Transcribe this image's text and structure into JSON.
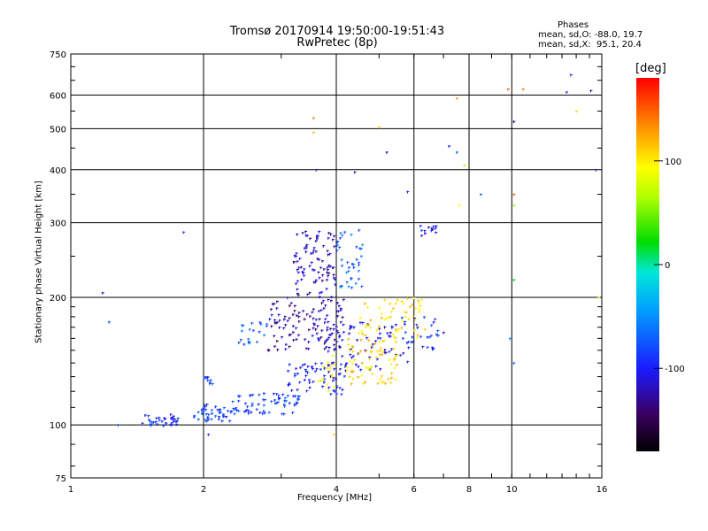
{
  "header": {
    "title": "Tromsø 20170914 19:50:00-19:51:43",
    "subtitle": "RwPretec (8p)"
  },
  "stats": {
    "heading": "Phases",
    "line_o": "mean, sd,O: -88.0, 19.7",
    "line_x": "mean, sd,X:  95.1, 20.4"
  },
  "colorbar": {
    "unit_label": "[deg]",
    "ticks": [
      {
        "value": 100,
        "label": "100"
      },
      {
        "value": 0,
        "label": "0"
      },
      {
        "value": -100,
        "label": "-100"
      }
    ],
    "range": [
      -180,
      180
    ]
  },
  "chart_data": {
    "type": "scatter",
    "title": "Tromsø 20170914 19:50:00-19:51:43",
    "subtitle": "RwPretec (8p)",
    "xlabel": "Frequency [MHz]",
    "ylabel": "Stationary phase Virtual Height [km]",
    "x_scale": "log",
    "y_scale": "log",
    "xlim": [
      1,
      16
    ],
    "ylim": [
      75,
      750
    ],
    "grid": true,
    "x_ticks": [
      {
        "value": 1,
        "label": "1"
      },
      {
        "value": 2,
        "label": "2"
      },
      {
        "value": 4,
        "label": "4"
      },
      {
        "value": 6,
        "label": "6"
      },
      {
        "value": 8,
        "label": "8"
      },
      {
        "value": 10,
        "label": "10"
      },
      {
        "value": 16,
        "label": "16"
      }
    ],
    "y_ticks": [
      {
        "value": 75,
        "label": "75"
      },
      {
        "value": 100,
        "label": "100"
      },
      {
        "value": 200,
        "label": "200"
      },
      {
        "value": 300,
        "label": "300"
      },
      {
        "value": 400,
        "label": "400"
      },
      {
        "value": 500,
        "label": "500"
      },
      {
        "value": 600,
        "label": "600"
      },
      {
        "value": 750,
        "label": "750"
      }
    ],
    "clusters": [
      {
        "x": [
          1.45,
          1.75
        ],
        "y": [
          99,
          106
        ],
        "phase": -95,
        "n": 35
      },
      {
        "x": [
          1.9,
          2.3
        ],
        "y": [
          102,
          112
        ],
        "phase": -88,
        "n": 40
      },
      {
        "x": [
          2.3,
          3.3
        ],
        "y": [
          106,
          120
        ],
        "phase": -85,
        "n": 70
      },
      {
        "x": [
          3.1,
          4.2
        ],
        "y": [
          118,
          140
        ],
        "phase": -100,
        "n": 60
      },
      {
        "x": [
          2.8,
          4.2
        ],
        "y": [
          150,
          200
        ],
        "phase": -125,
        "n": 110
      },
      {
        "x": [
          3.2,
          4.0
        ],
        "y": [
          200,
          290
        ],
        "phase": -118,
        "n": 90
      },
      {
        "x": [
          4.0,
          4.6
        ],
        "y": [
          210,
          290
        ],
        "phase": -70,
        "n": 40
      },
      {
        "x": [
          3.6,
          5.8
        ],
        "y": [
          135,
          175
        ],
        "phase": -108,
        "n": 80
      },
      {
        "x": [
          4.2,
          5.5
        ],
        "y": [
          125,
          160
        ],
        "phase": 110,
        "n": 70
      },
      {
        "x": [
          4.5,
          6.4
        ],
        "y": [
          160,
          200
        ],
        "phase": 105,
        "n": 60
      },
      {
        "x": [
          3.6,
          4.0
        ],
        "y": [
          120,
          150
        ],
        "phase": 95,
        "n": 15
      },
      {
        "x": [
          5.6,
          7.0
        ],
        "y": [
          150,
          180
        ],
        "phase": -92,
        "n": 30
      },
      {
        "x": [
          6.2,
          6.9
        ],
        "y": [
          280,
          295
        ],
        "phase": -110,
        "n": 12
      },
      {
        "x": [
          2.4,
          2.8
        ],
        "y": [
          155,
          175
        ],
        "phase": -75,
        "n": 20
      },
      {
        "x": [
          2.0,
          2.1
        ],
        "y": [
          125,
          130
        ],
        "phase": -88,
        "n": 10
      }
    ],
    "scattered_points": [
      {
        "x": 1.18,
        "y": 205,
        "phase": -115
      },
      {
        "x": 1.22,
        "y": 175,
        "phase": -80
      },
      {
        "x": 1.28,
        "y": 100,
        "phase": -80
      },
      {
        "x": 1.8,
        "y": 285,
        "phase": -90
      },
      {
        "x": 2.05,
        "y": 95,
        "phase": -95
      },
      {
        "x": 3.55,
        "y": 530,
        "phase": 140
      },
      {
        "x": 3.6,
        "y": 400,
        "phase": -110
      },
      {
        "x": 3.55,
        "y": 490,
        "phase": 120
      },
      {
        "x": 4.4,
        "y": 395,
        "phase": -120
      },
      {
        "x": 5.2,
        "y": 440,
        "phase": -130
      },
      {
        "x": 5.0,
        "y": 505,
        "phase": 110
      },
      {
        "x": 5.8,
        "y": 355,
        "phase": -100
      },
      {
        "x": 7.5,
        "y": 440,
        "phase": -75
      },
      {
        "x": 7.5,
        "y": 590,
        "phase": 130
      },
      {
        "x": 7.2,
        "y": 455,
        "phase": -105
      },
      {
        "x": 7.8,
        "y": 410,
        "phase": 110
      },
      {
        "x": 7.6,
        "y": 330,
        "phase": 90
      },
      {
        "x": 8.5,
        "y": 350,
        "phase": -70
      },
      {
        "x": 9.8,
        "y": 620,
        "phase": 150
      },
      {
        "x": 10.1,
        "y": 520,
        "phase": -140
      },
      {
        "x": 10.1,
        "y": 350,
        "phase": 150
      },
      {
        "x": 10.1,
        "y": 330,
        "phase": 60
      },
      {
        "x": 10.6,
        "y": 620,
        "phase": 140
      },
      {
        "x": 13.3,
        "y": 610,
        "phase": -90
      },
      {
        "x": 13.6,
        "y": 670,
        "phase": -95
      },
      {
        "x": 14.0,
        "y": 550,
        "phase": 110
      },
      {
        "x": 15.1,
        "y": 615,
        "phase": -120
      },
      {
        "x": 15.5,
        "y": 400,
        "phase": -110
      },
      {
        "x": 15.7,
        "y": 200,
        "phase": 60
      },
      {
        "x": 10.1,
        "y": 220,
        "phase": 20
      },
      {
        "x": 9.9,
        "y": 160,
        "phase": -60
      },
      {
        "x": 10.1,
        "y": 140,
        "phase": -70
      },
      {
        "x": 6.2,
        "y": 295,
        "phase": -100
      },
      {
        "x": 3.95,
        "y": 95,
        "phase": 110
      }
    ]
  }
}
